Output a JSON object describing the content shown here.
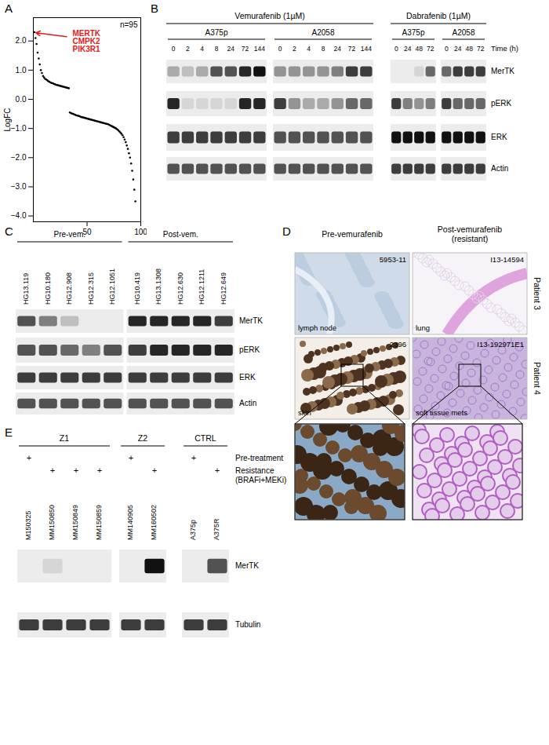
{
  "chart_data": {
    "type": "scatter",
    "panel_label": "A",
    "y_label": "LogFC",
    "color": "#000000",
    "x": [
      1,
      2,
      3,
      4,
      5,
      6,
      7,
      8,
      9,
      10,
      11,
      12,
      13,
      14,
      15,
      16,
      17,
      18,
      19,
      20,
      21,
      22,
      23,
      24,
      25,
      26,
      27,
      28,
      29,
      30,
      31,
      32,
      33,
      34,
      35,
      36,
      37,
      38,
      39,
      40,
      41,
      42,
      43,
      44,
      45,
      46,
      47,
      48,
      49,
      50,
      51,
      52,
      53,
      54,
      55,
      56,
      57,
      58,
      59,
      60,
      61,
      62,
      63,
      64,
      65,
      66,
      67,
      68,
      69,
      70,
      71,
      72,
      73,
      74,
      75,
      76,
      77,
      78,
      79,
      80,
      81,
      82,
      83,
      84,
      85,
      86,
      87,
      88,
      89,
      90,
      91,
      92,
      93,
      94,
      95
    ],
    "values": [
      2.3,
      2.1,
      1.9,
      1.6,
      1.4,
      1.2,
      1.0,
      0.9,
      0.8,
      0.75,
      0.7,
      0.68,
      0.65,
      0.62,
      0.6,
      0.58,
      0.56,
      0.55,
      0.53,
      0.52,
      0.5,
      0.49,
      0.48,
      0.47,
      0.46,
      0.45,
      0.44,
      0.43,
      0.42,
      0.41,
      0.4,
      0.39,
      0.38,
      -0.45,
      -0.47,
      -0.49,
      -0.5,
      -0.52,
      -0.53,
      -0.55,
      -0.56,
      -0.57,
      -0.58,
      -0.6,
      -0.61,
      -0.62,
      -0.63,
      -0.64,
      -0.65,
      -0.66,
      -0.67,
      -0.68,
      -0.69,
      -0.7,
      -0.71,
      -0.72,
      -0.73,
      -0.74,
      -0.75,
      -0.76,
      -0.77,
      -0.78,
      -0.79,
      -0.8,
      -0.81,
      -0.82,
      -0.83,
      -0.84,
      -0.85,
      -0.86,
      -0.88,
      -0.9,
      -0.92,
      -0.94,
      -0.96,
      -0.98,
      -1.0,
      -1.03,
      -1.06,
      -1.1,
      -1.14,
      -1.18,
      -1.23,
      -1.3,
      -1.38,
      -1.47,
      -1.58,
      -1.7,
      -1.85,
      -2.0,
      -2.2,
      -2.45,
      -2.75,
      -3.1,
      -3.5
    ],
    "xlim": [
      0,
      100
    ],
    "xticks": [
      50,
      100
    ],
    "ylim": [
      -4.2,
      2.8
    ],
    "yticks": [
      -4,
      -3,
      -2,
      -1,
      0,
      1,
      2
    ],
    "annotations": [
      {
        "text": "n=95"
      },
      {
        "text": [
          "MERTK",
          "CMPK2",
          "PIK3R1"
        ],
        "color": "#e41a1c"
      }
    ]
  },
  "panels": [
    {
      "label": "B",
      "time_label": "Time (h)",
      "treatments": [
        {
          "label": "Vemurafenib (1µM)",
          "groups": [
            {
              "label": "A375p",
              "times": [
                0,
                2,
                4,
                8,
                24,
                72,
                144
              ]
            },
            {
              "label": "A2058",
              "times": [
                0,
                2,
                4,
                8,
                24,
                72,
                144
              ]
            }
          ]
        },
        {
          "label": "Dabrafenib (1µM)",
          "groups": [
            {
              "label": "A375p",
              "times": [
                0,
                24,
                48,
                72
              ]
            },
            {
              "label": "A2058",
              "times": [
                0,
                24,
                48,
                72
              ]
            }
          ]
        }
      ],
      "rows": [
        {
          "name": "MerTK",
          "intensity": [
            0.3,
            0.2,
            0.3,
            0.7,
            0.7,
            0.9,
            1.0,
            0.4,
            0.4,
            0.4,
            0.4,
            0.5,
            0.8,
            0.8,
            0.0,
            0.0,
            0.1,
            0.6,
            0.6,
            0.8,
            0.8,
            0.8
          ]
        },
        {
          "name": "pERK",
          "intensity": [
            0.9,
            0.1,
            0.1,
            0.1,
            0.1,
            0.9,
            0.9,
            0.8,
            0.4,
            0.3,
            0.3,
            0.4,
            0.6,
            0.6,
            0.8,
            0.5,
            0.4,
            0.5,
            0.8,
            0.6,
            0.6,
            0.6
          ]
        },
        {
          "name": "ERK",
          "intensity": [
            0.8,
            0.8,
            0.8,
            0.8,
            0.8,
            0.8,
            0.8,
            0.7,
            0.7,
            0.7,
            0.7,
            0.7,
            0.7,
            0.7,
            1.0,
            1.0,
            1.0,
            1.0,
            1.0,
            1.0,
            1.0,
            1.0
          ]
        },
        {
          "name": "Actin",
          "intensity": [
            0.7,
            0.7,
            0.7,
            0.7,
            0.7,
            0.7,
            0.7,
            0.7,
            0.7,
            0.7,
            0.7,
            0.7,
            0.7,
            0.7,
            0.8,
            0.8,
            0.8,
            0.8,
            0.8,
            0.8,
            0.8,
            0.8
          ]
        }
      ]
    },
    {
      "label": "C",
      "groups": [
        {
          "label": "Pre-vem.",
          "samples": [
            "HG13.119",
            "HG10.180",
            "HG12.908",
            "HG12.315",
            "HG12.1051"
          ]
        },
        {
          "label": "Post-vem.",
          "samples": [
            "HG10.419",
            "HG13.1308",
            "HG12.630",
            "HG12.1211",
            "HG12.649"
          ]
        }
      ],
      "rows": [
        {
          "name": "MerTK",
          "intensity": [
            0.7,
            0.5,
            0.2,
            0.0,
            0.0,
            0.9,
            0.9,
            0.9,
            0.9,
            0.8
          ]
        },
        {
          "name": "pERK",
          "intensity": [
            0.7,
            0.7,
            0.6,
            0.5,
            0.7,
            0.8,
            0.9,
            0.9,
            0.9,
            0.9
          ]
        },
        {
          "name": "ERK",
          "intensity": [
            0.8,
            0.8,
            0.8,
            0.8,
            0.8,
            0.8,
            0.8,
            0.8,
            0.8,
            0.8
          ]
        },
        {
          "name": "Actin",
          "intensity": [
            0.7,
            0.7,
            0.7,
            0.7,
            0.7,
            0.7,
            0.7,
            0.7,
            0.7,
            0.7
          ]
        }
      ]
    },
    {
      "label": "D",
      "columns": [
        "Pre-vemurafenib",
        "Post-vemurafenib (resistant)"
      ],
      "rows": [
        {
          "label": "Patient 3",
          "images": [
            {
              "id": "5953-11",
              "tissue": "lymph node"
            },
            {
              "id": "I13-14594",
              "tissue": "lung"
            }
          ]
        },
        {
          "label": "Patient 4",
          "images": [
            {
              "id": "2396",
              "tissue": "skin"
            },
            {
              "id": "I13-192971E1",
              "tissue": "soft tissue mets"
            }
          ]
        }
      ]
    },
    {
      "label": "E",
      "mark": "+",
      "conditions": [
        "Pre-treatment",
        "Resistance (BRAFi+MEKi)"
      ],
      "groups": [
        {
          "label": "Z1",
          "samples": [
            {
              "name": "M150325",
              "condition": 0
            },
            {
              "name": "MM150850",
              "condition": 1
            },
            {
              "name": "MM150849",
              "condition": 1
            },
            {
              "name": "MM150859",
              "condition": 1
            }
          ]
        },
        {
          "label": "Z2",
          "samples": [
            {
              "name": "MM140905",
              "condition": 0
            },
            {
              "name": "MM160502",
              "condition": 1
            }
          ]
        },
        {
          "label": "CTRL",
          "samples": [
            {
              "name": "A375p",
              "condition": 0
            },
            {
              "name": "A375R",
              "condition": 1
            }
          ]
        }
      ],
      "rows": [
        {
          "name": "MerTK",
          "intensity": [
            0.0,
            0.1,
            0.0,
            0.0,
            0.0,
            1.0,
            0.0,
            0.7
          ]
        },
        {
          "name": "Tubulin",
          "intensity": [
            0.8,
            0.8,
            0.8,
            0.8,
            0.8,
            0.8,
            0.8,
            0.8
          ]
        }
      ]
    }
  ]
}
